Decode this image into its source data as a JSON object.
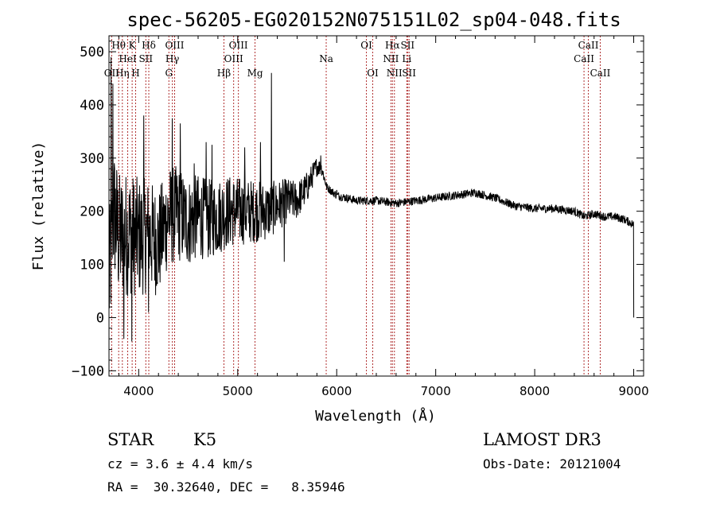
{
  "chart_data": {
    "type": "line",
    "title": "spec-56205-EG020152N075151L02_sp04-048.fits",
    "xlabel": "Wavelength (Å)",
    "ylabel": "Flux (relative)",
    "xlim": [
      3700,
      9100
    ],
    "ylim": [
      -110,
      530
    ],
    "xticks": [
      4000,
      5000,
      6000,
      7000,
      8000,
      9000
    ],
    "yticks": [
      -100,
      0,
      100,
      200,
      300,
      400,
      500
    ],
    "line_color": "#000000",
    "marker_color": "#b03030",
    "continuum_anchors": {
      "x": [
        3700,
        3750,
        3800,
        3900,
        4000,
        4100,
        4200,
        4300,
        4400,
        4500,
        4600,
        4700,
        4800,
        4900,
        5000,
        5100,
        5200,
        5300,
        5400,
        5500,
        5600,
        5700,
        5800,
        5850,
        5900,
        6000,
        6200,
        6400,
        6600,
        6800,
        7000,
        7200,
        7400,
        7600,
        7800,
        8000,
        8200,
        8400,
        8500,
        8600,
        8700,
        8800,
        8900,
        9000
      ],
      "y": [
        60,
        200,
        150,
        160,
        150,
        155,
        140,
        190,
        195,
        180,
        190,
        185,
        190,
        200,
        200,
        200,
        200,
        200,
        210,
        220,
        220,
        245,
        285,
        280,
        245,
        230,
        220,
        220,
        215,
        220,
        225,
        230,
        235,
        225,
        210,
        205,
        205,
        200,
        190,
        195,
        190,
        190,
        185,
        175
      ]
    },
    "noise_amplitude": {
      "x": [
        3700,
        4600,
        5300,
        5700,
        5900,
        9000
      ],
      "y": [
        130,
        80,
        55,
        30,
        8,
        8
      ]
    },
    "spikes": [
      {
        "x": 3720,
        "y": 490
      },
      {
        "x": 3740,
        "y": 440
      },
      {
        "x": 3850,
        "y": -40
      },
      {
        "x": 3930,
        "y": -45
      },
      {
        "x": 4050,
        "y": 380
      },
      {
        "x": 4100,
        "y": 10
      },
      {
        "x": 4340,
        "y": 375
      },
      {
        "x": 4420,
        "y": 365
      },
      {
        "x": 4560,
        "y": 290
      },
      {
        "x": 4680,
        "y": 330
      },
      {
        "x": 4740,
        "y": 325
      },
      {
        "x": 5070,
        "y": 320
      },
      {
        "x": 5230,
        "y": 330
      },
      {
        "x": 5340,
        "y": 460
      },
      {
        "x": 5470,
        "y": 105
      },
      {
        "x": 5840,
        "y": 305
      },
      {
        "x": 6000,
        "y": 240
      }
    ],
    "lines": [
      {
        "name": "OII",
        "x": 3727,
        "label": "OII",
        "row": 2
      },
      {
        "name": "H-theta",
        "x": 3798,
        "label": "Hθ",
        "row": 0
      },
      {
        "name": "H-eta",
        "x": 3835,
        "label": "Hη",
        "row": 2
      },
      {
        "name": "HeI",
        "x": 3889,
        "label": "HeI",
        "row": 1
      },
      {
        "name": "K",
        "x": 3934,
        "label": "K",
        "row": 0
      },
      {
        "name": "H",
        "x": 3969,
        "label": "H",
        "row": 2
      },
      {
        "name": "SII",
        "x": 4072,
        "label": "SII",
        "row": 1
      },
      {
        "name": "H-delta",
        "x": 4102,
        "label": "Hδ",
        "row": 0
      },
      {
        "name": "G",
        "x": 4305,
        "label": "G",
        "row": 2
      },
      {
        "name": "H-gamma",
        "x": 4340,
        "label": "Hγ",
        "row": 1
      },
      {
        "name": "OIII",
        "x": 4363,
        "label": "OIII",
        "row": 0
      },
      {
        "name": "H-beta",
        "x": 4861,
        "label": "Hβ",
        "row": 2
      },
      {
        "name": "OIII",
        "x": 4959,
        "label": "OIII",
        "row": 1
      },
      {
        "name": "OIII",
        "x": 5007,
        "label": "OIII",
        "row": 0
      },
      {
        "name": "Mg",
        "x": 5175,
        "label": "Mg",
        "row": 2
      },
      {
        "name": "Na",
        "x": 5894,
        "label": "Na",
        "row": 1
      },
      {
        "name": "OI",
        "x": 6300,
        "label": "OI",
        "row": 0
      },
      {
        "name": "OI",
        "x": 6364,
        "label": "OI",
        "row": 2
      },
      {
        "name": "NII",
        "x": 6548,
        "label": "NII",
        "row": 1
      },
      {
        "name": "H-alpha",
        "x": 6563,
        "label": "Hα",
        "row": 0
      },
      {
        "name": "NII",
        "x": 6583,
        "label": "NII",
        "row": 2
      },
      {
        "name": "Li",
        "x": 6708,
        "label": "Li",
        "row": 1
      },
      {
        "name": "SII",
        "x": 6716,
        "label": "SII",
        "row": 0
      },
      {
        "name": "SII",
        "x": 6731,
        "label": "SII",
        "row": 2
      },
      {
        "name": "CaII",
        "x": 8498,
        "label": "CaII",
        "row": 1
      },
      {
        "name": "CaII",
        "x": 8542,
        "label": "CaII",
        "row": 0
      },
      {
        "name": "CaII",
        "x": 8662,
        "label": "CaII",
        "row": 2
      }
    ]
  },
  "info": {
    "object_type": "STAR",
    "subclass": "K5",
    "survey": "LAMOST DR3",
    "cz": "cz = 3.6 ± 4.4 km/s",
    "obs_date": "Obs-Date: 20121004",
    "coords": "RA =  30.32640, DEC =   8.35946"
  }
}
